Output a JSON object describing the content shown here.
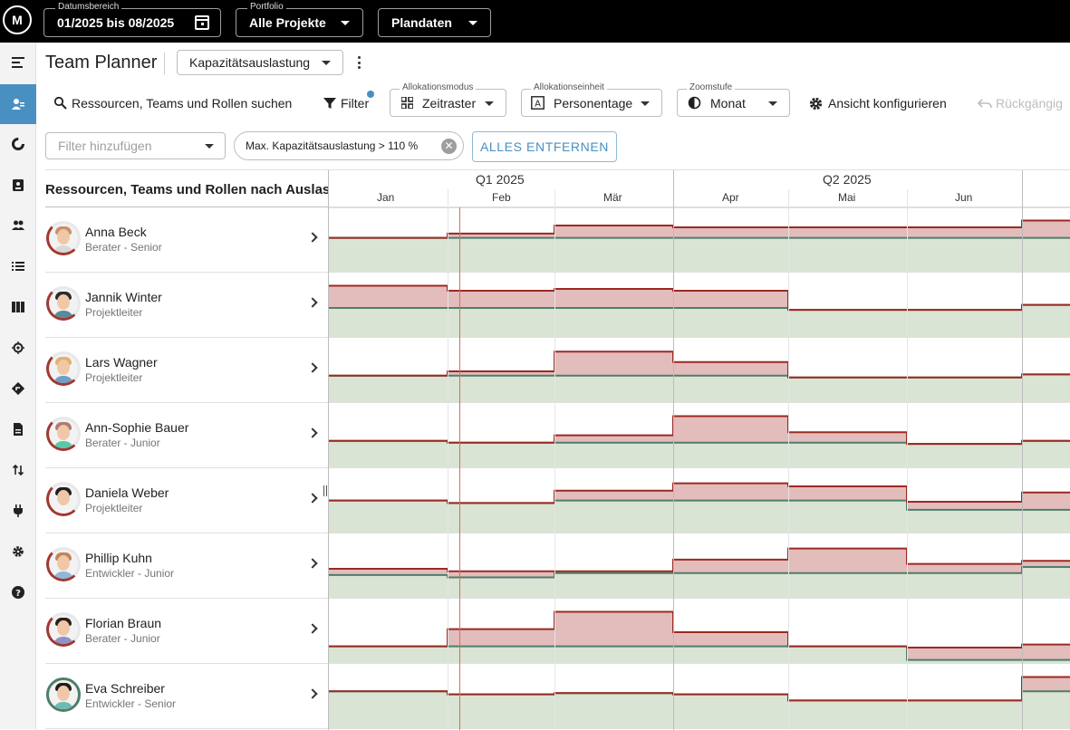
{
  "topbar": {
    "logo": "M",
    "date_range": {
      "label": "Datumsbereich",
      "value": "01/2025 bis 08/2025"
    },
    "portfolio": {
      "label": "Portfolio",
      "value": "Alle Projekte"
    },
    "dataset": {
      "value": "Plandaten"
    }
  },
  "sidenav": {
    "items": [
      {
        "name": "menu-icon"
      },
      {
        "name": "resource-planner-icon",
        "active": true
      },
      {
        "name": "capacity-icon"
      },
      {
        "name": "assignment-icon"
      },
      {
        "name": "team-icon"
      },
      {
        "name": "list-icon"
      },
      {
        "name": "board-icon"
      },
      {
        "name": "target-icon"
      },
      {
        "name": "route-icon"
      },
      {
        "name": "document-icon"
      },
      {
        "name": "swap-icon"
      },
      {
        "name": "plugin-icon"
      },
      {
        "name": "settings-icon"
      },
      {
        "name": "help-icon"
      }
    ]
  },
  "header": {
    "title": "Team Planner",
    "view_select": "Kapazitätsauslastung"
  },
  "toolbar": {
    "search_label": "Ressourcen, Teams und Rollen suchen",
    "filter_label": "Filter",
    "allocation_mode": {
      "label": "Allokationsmodus",
      "value": "Zeitraster"
    },
    "allocation_unit": {
      "label": "Allokationseinheit",
      "value": "Personentage"
    },
    "zoom": {
      "label": "Zoomstufe",
      "value": "Monat"
    },
    "configure_label": "Ansicht konfigurieren",
    "undo_label": "Rückgängig"
  },
  "filters": {
    "add_placeholder": "Filter hinzufügen",
    "active_chip": "Max. Kapazitätsauslastung > 110 %",
    "clear_all": "ALLES ENTFERNEN"
  },
  "grid": {
    "list_header": "Ressourcen, Teams und Rollen nach Auslastung",
    "quarters": [
      "Q1 2025",
      "Q2 2025"
    ],
    "months": [
      "Jan",
      "Feb",
      "Mär",
      "Apr",
      "Mai",
      "Jun"
    ]
  },
  "colors": {
    "over": "#e3bcbc",
    "over_line": "#9b2a22",
    "capacity": "#d9e4d4",
    "capacity_line": "#4e7d6a",
    "unused": "#e7e9ec",
    "accent": "#4a8fc1"
  },
  "people": [
    {
      "name": "Anna Beck",
      "role": "Berater - Senior",
      "hair": "#c9906a",
      "shirt": "#d9d9d9",
      "ring": "red",
      "capacity": [
        0.55,
        0.55,
        0.55,
        0.55,
        0.55,
        0.55,
        0.55
      ],
      "load": [
        0.55,
        0.62,
        0.75,
        0.72,
        0.72,
        0.72,
        0.83
      ]
    },
    {
      "name": "Jannik Winter",
      "role": "Projektleiter",
      "hair": "#2b2b2b",
      "shirt": "#5b8a9a",
      "ring": "red",
      "capacity": [
        0.47,
        0.47,
        0.47,
        0.47,
        0.44,
        0.44,
        0.52
      ],
      "load": [
        0.83,
        0.75,
        0.78,
        0.75,
        0.44,
        0.44,
        0.52
      ]
    },
    {
      "name": "Lars Wagner",
      "role": "Projektleiter",
      "hair": "#e0b06c",
      "shirt": "#6d9fc9",
      "ring": "red",
      "capacity": [
        0.43,
        0.43,
        0.43,
        0.43,
        0.4,
        0.4,
        0.45
      ],
      "load": [
        0.43,
        0.5,
        0.82,
        0.65,
        0.4,
        0.4,
        0.45
      ]
    },
    {
      "name": "Ann-Sophie Bauer",
      "role": "Berater - Junior",
      "hair": "#b07b72",
      "shirt": "#59c9a8",
      "ring": "red",
      "capacity": [
        0.43,
        0.4,
        0.4,
        0.4,
        0.4,
        0.38,
        0.43
      ],
      "load": [
        0.43,
        0.4,
        0.52,
        0.83,
        0.57,
        0.38,
        0.43
      ]
    },
    {
      "name": "Daniela Weber",
      "role": "Projektleiter",
      "hair": "#1f1f1f",
      "shirt": "#f4f4f4",
      "ring": "red",
      "capacity": [
        0.52,
        0.48,
        0.52,
        0.52,
        0.52,
        0.37,
        0.37
      ],
      "load": [
        0.52,
        0.48,
        0.68,
        0.8,
        0.75,
        0.5,
        0.65
      ]
    },
    {
      "name": "Phillip Kuhn",
      "role": "Entwickler - Junior",
      "hair": "#c38456",
      "shirt": "#8fb7d9",
      "ring": "red",
      "capacity": [
        0.37,
        0.33,
        0.4,
        0.4,
        0.4,
        0.4,
        0.5
      ],
      "load": [
        0.47,
        0.43,
        0.43,
        0.62,
        0.8,
        0.55,
        0.6
      ]
    },
    {
      "name": "Florian Braun",
      "role": "Berater - Junior",
      "hair": "#2e2018",
      "shirt": "#8f92c7",
      "ring": "red",
      "capacity": [
        0.27,
        0.27,
        0.27,
        0.27,
        0.27,
        0.05,
        0.05
      ],
      "load": [
        0.27,
        0.55,
        0.83,
        0.5,
        0.27,
        0.25,
        0.3
      ]
    },
    {
      "name": "Eva Schreiber",
      "role": "Entwickler - Senior",
      "hair": "#1e1e1e",
      "shirt": "#6dbab6",
      "ring": "green",
      "capacity": [
        0.6,
        0.55,
        0.57,
        0.55,
        0.45,
        0.45,
        0.6
      ],
      "load": [
        0.6,
        0.55,
        0.57,
        0.55,
        0.45,
        0.45,
        0.83
      ]
    }
  ]
}
